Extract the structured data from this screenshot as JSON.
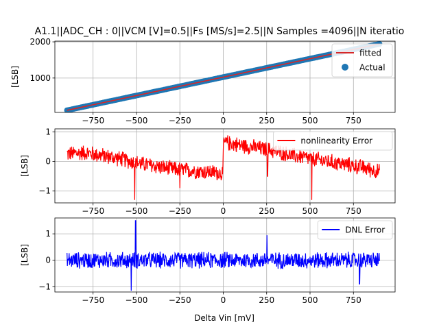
{
  "figure": {
    "title": "A1.1||ADC_CH : 0||VCM [V]=0.5||Fs [MS/s]=2.5||N Samples =4096||N iteratio",
    "xlabel": "Delta Vin [mV]"
  },
  "chart_data": [
    {
      "type": "line",
      "subplot": "transfer",
      "ylabel": "[LSB]",
      "xlim": [
        -970,
        990
      ],
      "ylim": [
        50,
        2020
      ],
      "xticks": [
        -750,
        -500,
        -250,
        0,
        250,
        500,
        750
      ],
      "yticks": [
        1000,
        2000
      ],
      "grid": true,
      "legend_position": "top-right",
      "series": [
        {
          "name": "fitted",
          "kind": "line",
          "color": "#d62728",
          "x": [
            -900,
            900
          ],
          "y": [
            108,
            1942
          ]
        },
        {
          "name": "Actual",
          "kind": "scatter",
          "color": "#1f77b4",
          "x": [
            -900,
            900
          ],
          "y": [
            108,
            1942
          ]
        }
      ]
    },
    {
      "type": "line",
      "subplot": "nonlinearity",
      "ylabel": "[LSB]",
      "xlim": [
        -970,
        990
      ],
      "ylim": [
        -1.4,
        1.1
      ],
      "xticks": [
        -750,
        -500,
        -250,
        0,
        250,
        500,
        750
      ],
      "yticks": [
        -1,
        0,
        1
      ],
      "grid": true,
      "legend_position": "top-right",
      "series": [
        {
          "name": "nonlinearity Error",
          "color": "#ff0000",
          "trend_x": [
            -900,
            -800,
            -700,
            -600,
            -500,
            -400,
            -300,
            -200,
            -100,
            -1,
            1,
            100,
            200,
            300,
            400,
            500,
            600,
            700,
            800,
            900
          ],
          "trend_y": [
            0.25,
            0.3,
            0.2,
            0.1,
            -0.05,
            -0.15,
            -0.25,
            -0.3,
            -0.35,
            -0.4,
            0.65,
            0.55,
            0.45,
            0.35,
            0.2,
            0.1,
            0.0,
            -0.1,
            -0.2,
            -0.35
          ],
          "noise_amplitude": 0.3,
          "spikes": [
            {
              "x": -510,
              "y": -1.3
            },
            {
              "x": -250,
              "y": -0.9
            },
            {
              "x": 255,
              "y": -0.5
            },
            {
              "x": 510,
              "y": -1.3
            }
          ]
        }
      ]
    },
    {
      "type": "line",
      "subplot": "dnl",
      "ylabel": "[LSB]",
      "xlim": [
        -970,
        990
      ],
      "ylim": [
        -1.2,
        1.6
      ],
      "xticks": [
        -750,
        -500,
        -250,
        0,
        250,
        500,
        750
      ],
      "yticks": [
        -1,
        0,
        1
      ],
      "grid": true,
      "legend_position": "top-right",
      "series": [
        {
          "name": "DNL Error",
          "color": "#0000ff",
          "mean": 0.0,
          "noise_amplitude": 0.35,
          "spikes": [
            {
              "x": -505,
              "y": 1.5
            },
            {
              "x": -530,
              "y": -1.15
            },
            {
              "x": 252,
              "y": 0.95
            },
            {
              "x": 785,
              "y": -0.9
            }
          ]
        }
      ]
    }
  ]
}
